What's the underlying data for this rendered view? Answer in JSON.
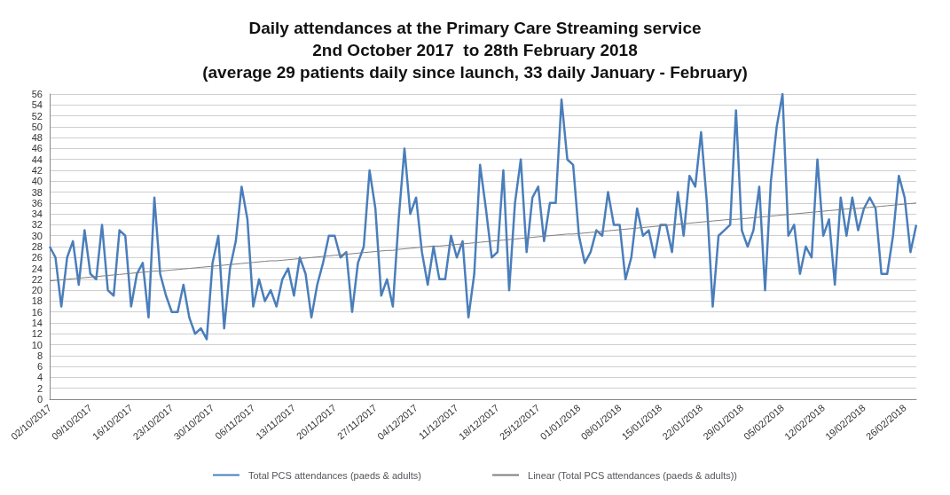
{
  "chart_data": {
    "type": "line",
    "title": "Daily attendances at the Primary Care Streaming service\n2nd October 2017  to 28th February 2018\n(average 29 patients daily since launch, 33 daily January - February)",
    "categories": [
      "02/10/2017",
      null,
      null,
      null,
      null,
      null,
      null,
      "09/10/2017",
      null,
      null,
      null,
      null,
      null,
      null,
      "16/10/2017",
      null,
      null,
      null,
      null,
      null,
      null,
      "23/10/2017",
      null,
      null,
      null,
      null,
      null,
      null,
      "30/10/2017",
      null,
      null,
      null,
      null,
      null,
      null,
      "06/11/2017",
      null,
      null,
      null,
      null,
      null,
      null,
      "13/11/2017",
      null,
      null,
      null,
      null,
      null,
      null,
      "20/11/2017",
      null,
      null,
      null,
      null,
      null,
      null,
      "27/11/2017",
      null,
      null,
      null,
      null,
      null,
      null,
      "04/12/2017",
      null,
      null,
      null,
      null,
      null,
      null,
      "11/12/2017",
      null,
      null,
      null,
      null,
      null,
      null,
      "18/12/2017",
      null,
      null,
      null,
      null,
      null,
      null,
      "25/12/2017",
      null,
      null,
      null,
      null,
      null,
      null,
      "01/01/2018",
      null,
      null,
      null,
      null,
      null,
      null,
      "08/01/2018",
      null,
      null,
      null,
      null,
      null,
      null,
      "15/01/2018",
      null,
      null,
      null,
      null,
      null,
      null,
      "22/01/2018",
      null,
      null,
      null,
      null,
      null,
      null,
      "29/01/2018",
      null,
      null,
      null,
      null,
      null,
      null,
      "05/02/2018",
      null,
      null,
      null,
      null,
      null,
      null,
      "12/02/2018",
      null,
      null,
      null,
      null,
      null,
      null,
      "19/02/2018",
      null,
      null,
      null,
      null,
      null,
      null,
      "26/02/2018",
      null,
      null
    ],
    "series": [
      {
        "name": "Total PCS attendances (paeds & adults)",
        "color": "#4a7ebb",
        "values": [
          28,
          26,
          17,
          26,
          29,
          21,
          31,
          23,
          22,
          32,
          20,
          19,
          31,
          30,
          17,
          23,
          25,
          15,
          37,
          23,
          19,
          16,
          16,
          21,
          15,
          12,
          13,
          11,
          25,
          30,
          13,
          24,
          29,
          39,
          33,
          17,
          22,
          18,
          20,
          17,
          22,
          24,
          19,
          26,
          23,
          15,
          21,
          25,
          30,
          30,
          26,
          27,
          16,
          25,
          28,
          42,
          35,
          19,
          22,
          17,
          33,
          46,
          34,
          37,
          27,
          21,
          28,
          22,
          22,
          30,
          26,
          29,
          15,
          23,
          43,
          35,
          26,
          27,
          42,
          20,
          36,
          44,
          27,
          37,
          39,
          29,
          36,
          36,
          55,
          44,
          43,
          30,
          25,
          27,
          31,
          30,
          38,
          32,
          32,
          22,
          26,
          35,
          30,
          31,
          26,
          32,
          32,
          27,
          38,
          30,
          41,
          39,
          49,
          36,
          17,
          30,
          31,
          32,
          53,
          31,
          28,
          31,
          39,
          20,
          40,
          50,
          56,
          30,
          32,
          23,
          28,
          26,
          44,
          30,
          33,
          21,
          37,
          30,
          37,
          31,
          35,
          37,
          35,
          23,
          23,
          30,
          41,
          37,
          27,
          32
        ]
      },
      {
        "name": "Linear (Total PCS attendances (paeds & adults))",
        "color": "#7f7f7f",
        "values": [
          21.7,
          21.8,
          21.9,
          22.0,
          22.1,
          22.2,
          22.3,
          22.4,
          22.5,
          22.6,
          22.7,
          22.8,
          22.9,
          23.0,
          23.1,
          23.2,
          23.3,
          23.4,
          23.5,
          23.5,
          23.6,
          23.7,
          23.8,
          23.9,
          24.0,
          24.1,
          24.2,
          24.3,
          24.4,
          24.5,
          24.6,
          24.7,
          24.8,
          24.9,
          25.0,
          25.1,
          25.2,
          25.3,
          25.4,
          25.4,
          25.5,
          25.6,
          25.7,
          25.8,
          25.9,
          26.0,
          26.1,
          26.2,
          26.3,
          26.4,
          26.5,
          26.6,
          26.7,
          26.8,
          26.9,
          27.0,
          27.1,
          27.2,
          27.3,
          27.3,
          27.5,
          27.6,
          27.7,
          27.8,
          27.9,
          28.0,
          28.1,
          28.1,
          28.2,
          28.3,
          28.4,
          28.5,
          28.6,
          28.7,
          28.8,
          28.9,
          29.0,
          29.1,
          29.2,
          29.3,
          29.4,
          29.5,
          29.6,
          29.7,
          29.8,
          29.9,
          30.0,
          30.1,
          30.2,
          30.3,
          30.3,
          30.4,
          30.5,
          30.6,
          30.7,
          30.8,
          30.9,
          31.0,
          31.1,
          31.2,
          31.3,
          31.4,
          31.5,
          31.6,
          31.7,
          31.8,
          31.9,
          32.0,
          32.1,
          32.2,
          32.3,
          32.4,
          32.5,
          32.6,
          32.7,
          32.8,
          32.9,
          33.0,
          33.0,
          33.1,
          33.2,
          33.3,
          33.4,
          33.5,
          33.6,
          33.7,
          33.8,
          33.9,
          34.0,
          34.1,
          34.2,
          34.3,
          34.4,
          34.5,
          34.6,
          34.7,
          34.8,
          34.9,
          35.0,
          35.0,
          35.1,
          35.2,
          35.3,
          35.4,
          35.5,
          35.6,
          35.7,
          35.8,
          35.9,
          36.0
        ]
      }
    ],
    "ylim": [
      0,
      56
    ],
    "yticks": [
      0,
      2,
      4,
      6,
      8,
      10,
      12,
      14,
      16,
      18,
      20,
      22,
      24,
      26,
      28,
      30,
      32,
      34,
      36,
      38,
      40,
      42,
      44,
      46,
      48,
      50,
      52,
      54,
      56
    ],
    "grid": "y",
    "legend": "bottom",
    "marker": "none"
  }
}
